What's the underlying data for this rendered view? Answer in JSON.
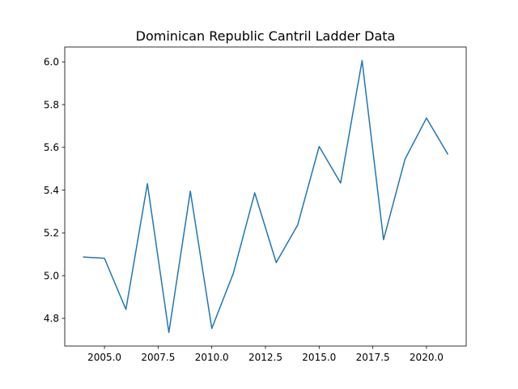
{
  "chart_data": {
    "type": "line",
    "title": "Dominican Republic Cantril Ladder Data",
    "xlabel": "",
    "ylabel": "",
    "x": [
      2004,
      2005,
      2006,
      2007,
      2008,
      2009,
      2010,
      2011,
      2012,
      2013,
      2014,
      2015,
      2016,
      2017,
      2018,
      2019,
      2020,
      2021
    ],
    "series": [
      {
        "values": [
          5.087,
          5.081,
          4.842,
          5.43,
          4.734,
          5.395,
          4.753,
          5.01,
          5.387,
          5.061,
          5.237,
          5.604,
          5.433,
          6.006,
          5.168,
          5.545,
          5.737,
          5.567
        ],
        "color": "#1f77b4"
      }
    ],
    "xlim": [
      2003.15,
      2021.85
    ],
    "ylim": [
      4.6705,
      6.0695
    ],
    "xticks": [
      2005.0,
      2007.5,
      2010.0,
      2012.5,
      2015.0,
      2017.5,
      2020.0
    ],
    "xtick_labels": [
      "2005.0",
      "2007.5",
      "2010.0",
      "2012.5",
      "2015.0",
      "2017.5",
      "2020.0"
    ],
    "yticks": [
      4.8,
      5.0,
      5.2,
      5.4,
      5.6,
      5.8,
      6.0
    ],
    "ytick_labels": [
      "4.8",
      "5.0",
      "5.2",
      "5.4",
      "5.6",
      "5.8",
      "6.0"
    ],
    "grid": false,
    "legend": "none"
  }
}
